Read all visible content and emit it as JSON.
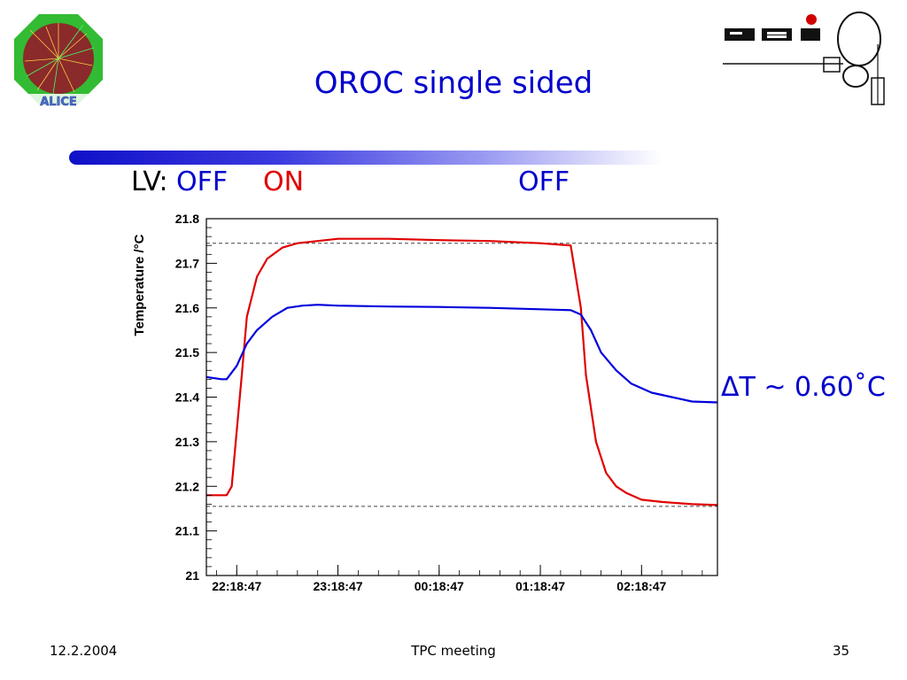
{
  "slide": {
    "title": "OROC single sided",
    "lv_prefix": "LV:",
    "lv_off_1": "OFF",
    "lv_on": "ON",
    "lv_off_2": "OFF",
    "delta_label": "ΔT ~ 0.60˚C",
    "footer_date": "12.2.2004",
    "footer_center": "TPC meeting",
    "footer_page": "35",
    "logos": [
      "alice-logo",
      "gsi-logo"
    ]
  },
  "colors": {
    "title": "#0000cc",
    "on": "#e00000",
    "series_red": "#e00000",
    "series_blue": "#0000dd"
  },
  "chart_data": {
    "type": "line",
    "title": "",
    "xlabel": "",
    "ylabel": "Temperature /°C",
    "ylim": [
      21.0,
      21.8
    ],
    "xlim_hours": [
      -0.3,
      4.75
    ],
    "y_ticks": [
      "21",
      "21.1",
      "21.2",
      "21.3",
      "21.4",
      "21.5",
      "21.6",
      "21.7",
      "21.8"
    ],
    "x_ticks": [
      "22:18:47",
      "23:18:47",
      "00:18:47",
      "01:18:47",
      "02:18:47"
    ],
    "x_tick_hours": [
      0,
      1,
      2,
      3,
      4
    ],
    "grid": false,
    "reference_lines": [
      21.745,
      21.155
    ],
    "series": [
      {
        "color": "#e00000",
        "x_hours": [
          -0.3,
          -0.1,
          -0.05,
          0.05,
          0.1,
          0.2,
          0.3,
          0.45,
          0.6,
          0.8,
          1.0,
          1.2,
          1.5,
          2.0,
          2.5,
          3.0,
          3.3,
          3.4,
          3.45,
          3.55,
          3.65,
          3.75,
          3.85,
          4.0,
          4.2,
          4.5,
          4.75
        ],
        "values": [
          21.18,
          21.18,
          21.2,
          21.45,
          21.58,
          21.67,
          21.71,
          21.735,
          21.745,
          21.75,
          21.755,
          21.755,
          21.755,
          21.752,
          21.75,
          21.745,
          21.74,
          21.6,
          21.45,
          21.3,
          21.23,
          21.2,
          21.185,
          21.17,
          21.165,
          21.16,
          21.158
        ]
      },
      {
        "color": "#0000dd",
        "x_hours": [
          -0.3,
          -0.15,
          -0.1,
          0.0,
          0.1,
          0.2,
          0.35,
          0.5,
          0.65,
          0.8,
          1.0,
          1.5,
          2.0,
          2.5,
          3.0,
          3.3,
          3.4,
          3.5,
          3.6,
          3.75,
          3.9,
          4.1,
          4.3,
          4.5,
          4.75
        ],
        "values": [
          21.445,
          21.44,
          21.44,
          21.47,
          21.52,
          21.55,
          21.58,
          21.6,
          21.605,
          21.607,
          21.605,
          21.603,
          21.602,
          21.6,
          21.597,
          21.595,
          21.585,
          21.55,
          21.5,
          21.46,
          21.43,
          21.41,
          21.4,
          21.39,
          21.388
        ]
      }
    ]
  }
}
